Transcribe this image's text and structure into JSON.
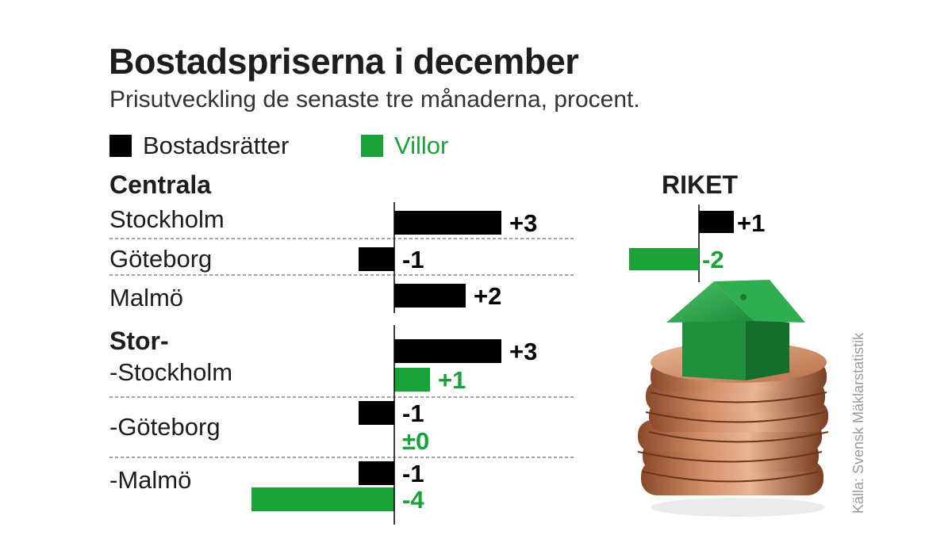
{
  "colors": {
    "bostadsratter": "#000000",
    "villor": "#1aa23a"
  },
  "source": "Källa: Svensk Mäklarstatistik",
  "chart_data": {
    "type": "bar",
    "orientation": "horizontal",
    "title": "Bostadspriserna i december",
    "subtitle": "Prisutveckling de senaste tre månaderna, procent.",
    "legend": [
      "Bostadsrätter",
      "Villor"
    ],
    "groups": [
      {
        "label": "Centrala",
        "rows": [
          {
            "label": "Stockholm",
            "bostadsratter": 3,
            "bostadsratter_label": "+3"
          },
          {
            "label": "Göteborg",
            "bostadsratter": -1,
            "bostadsratter_label": "-1"
          },
          {
            "label": "Malmö",
            "bostadsratter": 2,
            "bostadsratter_label": "+2"
          }
        ]
      },
      {
        "label": "Stor-",
        "rows": [
          {
            "label": "-Stockholm",
            "bostadsratter": 3,
            "bostadsratter_label": "+3",
            "villor": 1,
            "villor_label": "+1"
          },
          {
            "label": "-Göteborg",
            "bostadsratter": -1,
            "bostadsratter_label": "-1",
            "villor": 0,
            "villor_label": "±0"
          },
          {
            "label": "-Malmö",
            "bostadsratter": -1,
            "bostadsratter_label": "-1",
            "villor": -4,
            "villor_label": "-4"
          }
        ]
      }
    ],
    "riket": {
      "label": "RIKET",
      "bostadsratter": 1,
      "bostadsratter_label": "+1",
      "villor": -2,
      "villor_label": "-2"
    }
  }
}
